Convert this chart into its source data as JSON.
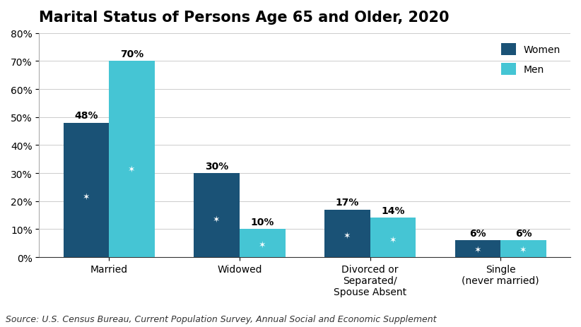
{
  "title": "Marital Status of Persons Age 65 and Older, 2020",
  "categories": [
    "Married",
    "Widowed",
    "Divorced or\nSeparated/\nSpouse Absent",
    "Single\n(never married)"
  ],
  "women_values": [
    48,
    30,
    17,
    6
  ],
  "men_values": [
    70,
    10,
    14,
    6
  ],
  "women_color": "#1a5276",
  "men_color": "#45c5d4",
  "bar_width": 0.35,
  "ylim": [
    0,
    80
  ],
  "yticks": [
    0,
    10,
    20,
    30,
    40,
    50,
    60,
    70,
    80
  ],
  "ytick_labels": [
    "0%",
    "10%",
    "20%",
    "30%",
    "40%",
    "50%",
    "60%",
    "70%",
    "80%"
  ],
  "source_text": "Source: U.S. Census Bureau, Current Population Survey, Annual Social and Economic Supplement",
  "title_fontsize": 15,
  "label_fontsize": 10,
  "tick_fontsize": 10,
  "source_fontsize": 9,
  "legend_labels": [
    "Women",
    "Men"
  ],
  "star_marker": "★",
  "background_color": "#ffffff"
}
